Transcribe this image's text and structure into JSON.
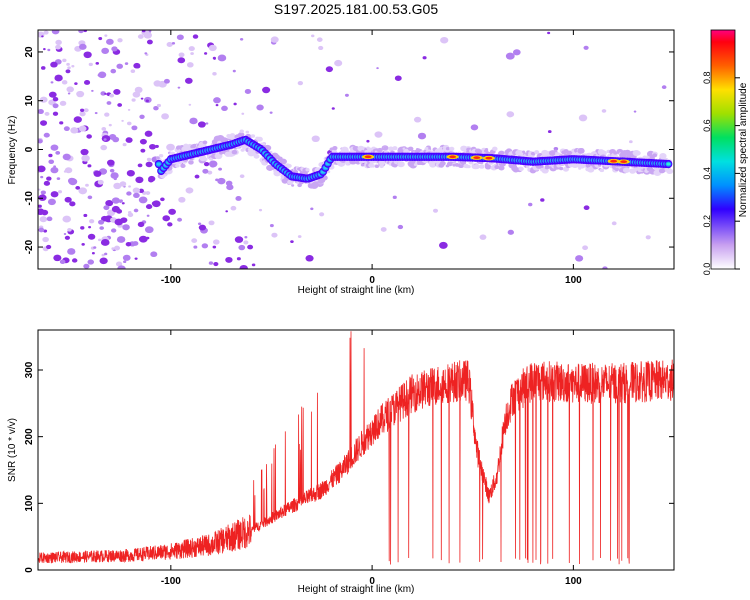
{
  "chart_data": [
    {
      "type": "heatmap",
      "title": "S197.2025.181.00.53.G05",
      "xlabel": "Height of straight line (km)",
      "ylabel": "Frequency (Hz)",
      "xlim": [
        -166,
        150
      ],
      "ylim": [
        -24.5,
        24.5
      ],
      "xticks": [
        -100,
        0,
        100
      ],
      "yticks": [
        -20,
        -10,
        0,
        10,
        20
      ],
      "colorbar": {
        "label": "Normalized spectral amplitude",
        "range": [
          0,
          1
        ],
        "ticks": [
          "0.0",
          "0.2",
          "0.4",
          "0.6",
          "0.8"
        ]
      },
      "ridge": [
        {
          "x": -105,
          "y": -4.5
        },
        {
          "x": -100,
          "y": -2
        },
        {
          "x": -90,
          "y": -1
        },
        {
          "x": -80,
          "y": 0
        },
        {
          "x": -70,
          "y": 1
        },
        {
          "x": -63,
          "y": 2
        },
        {
          "x": -55,
          "y": 0
        },
        {
          "x": -48,
          "y": -3
        },
        {
          "x": -40,
          "y": -5.5
        },
        {
          "x": -32,
          "y": -6
        },
        {
          "x": -25,
          "y": -5
        },
        {
          "x": -20,
          "y": -1.5
        },
        {
          "x": -10,
          "y": -1.5
        },
        {
          "x": 0,
          "y": -1.5
        },
        {
          "x": 20,
          "y": -1.5
        },
        {
          "x": 40,
          "y": -1.5
        },
        {
          "x": 60,
          "y": -1.8
        },
        {
          "x": 80,
          "y": -2.5
        },
        {
          "x": 100,
          "y": -2
        },
        {
          "x": 125,
          "y": -2.5
        },
        {
          "x": 148,
          "y": -3
        }
      ]
    },
    {
      "type": "line",
      "xlabel": "Height of straight line (km)",
      "ylabel": "SNR (10 * v/v)",
      "xlim": [
        -166,
        150
      ],
      "ylim": [
        0,
        360
      ],
      "xticks": [
        -100,
        0,
        100
      ],
      "yticks": [
        0,
        100,
        200,
        300
      ],
      "color": "#ee2222",
      "envelope": [
        {
          "x": -166,
          "y": 18
        },
        {
          "x": -120,
          "y": 22
        },
        {
          "x": -100,
          "y": 28
        },
        {
          "x": -80,
          "y": 38
        },
        {
          "x": -60,
          "y": 60
        },
        {
          "x": -40,
          "y": 95
        },
        {
          "x": -25,
          "y": 120
        },
        {
          "x": -15,
          "y": 150
        },
        {
          "x": 0,
          "y": 210
        },
        {
          "x": 10,
          "y": 240
        },
        {
          "x": 20,
          "y": 265
        },
        {
          "x": 35,
          "y": 280
        },
        {
          "x": 48,
          "y": 285
        },
        {
          "x": 52,
          "y": 180
        },
        {
          "x": 58,
          "y": 110
        },
        {
          "x": 62,
          "y": 140
        },
        {
          "x": 66,
          "y": 225
        },
        {
          "x": 70,
          "y": 260
        },
        {
          "x": 80,
          "y": 285
        },
        {
          "x": 100,
          "y": 280
        },
        {
          "x": 120,
          "y": 280
        },
        {
          "x": 150,
          "y": 285
        }
      ]
    }
  ]
}
